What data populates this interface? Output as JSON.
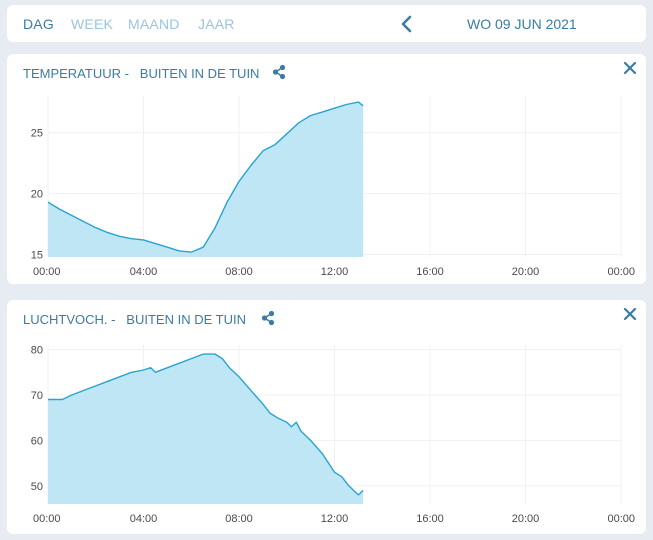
{
  "period_tabs": [
    {
      "label": "DAG",
      "active": true
    },
    {
      "label": "WEEK",
      "active": false
    },
    {
      "label": "MAAND",
      "active": false
    },
    {
      "label": "JAAR",
      "active": false
    }
  ],
  "date": "WO 09 JUN 2021",
  "icons": {
    "prev": "chevron-left-icon",
    "share": "share-icon",
    "close": "close-icon"
  },
  "colors": {
    "accent": "#3a7ca4",
    "series_line": "#2aa3cf",
    "series_fill": "#bfe6f5"
  },
  "panels": [
    {
      "metric": "TEMPERATUUR -",
      "location": "BUITEN IN DE TUIN"
    },
    {
      "metric": "LUCHTVOCH. -",
      "location": "BUITEN IN DE TUIN"
    }
  ],
  "chart_data": [
    {
      "type": "area",
      "title": "TEMPERATUUR -   BUITEN IN DE TUIN",
      "x_ticks": [
        "00:00",
        "04:00",
        "08:00",
        "12:00",
        "16:00",
        "20:00",
        "00:00"
      ],
      "xlim": [
        0,
        24
      ],
      "y_ticks": [
        15,
        20,
        25
      ],
      "ylim": [
        14.8,
        28
      ],
      "grid": true,
      "x": [
        0,
        0.5,
        1,
        1.5,
        2,
        2.5,
        3,
        3.5,
        4,
        4.5,
        5,
        5.5,
        6,
        6.5,
        7,
        7.5,
        8,
        8.5,
        9,
        9.5,
        10,
        10.5,
        11,
        11.5,
        12,
        12.5,
        13,
        13.2
      ],
      "values": [
        19.3,
        18.7,
        18.2,
        17.7,
        17.2,
        16.8,
        16.5,
        16.3,
        16.2,
        15.9,
        15.6,
        15.3,
        15.2,
        15.6,
        17.2,
        19.3,
        21.0,
        22.3,
        23.5,
        24.0,
        24.9,
        25.8,
        26.4,
        26.7,
        27.0,
        27.3,
        27.5,
        27.2
      ]
    },
    {
      "type": "area",
      "title": "LUCHTVOCH. -   BUITEN IN DE TUIN",
      "x_ticks": [
        "00:00",
        "04:00",
        "08:00",
        "12:00",
        "16:00",
        "20:00",
        "00:00"
      ],
      "xlim": [
        0,
        24
      ],
      "y_ticks": [
        50,
        60,
        70,
        80
      ],
      "ylim": [
        46,
        81
      ],
      "grid": true,
      "x": [
        0,
        0.6,
        1,
        1.5,
        2,
        2.5,
        3,
        3.5,
        4,
        4.3,
        4.5,
        5,
        5.5,
        6,
        6.5,
        7,
        7.3,
        7.6,
        8,
        8.5,
        9,
        9.3,
        9.6,
        10,
        10.2,
        10.4,
        10.6,
        11,
        11.5,
        12,
        12.3,
        12.6,
        12.8,
        13,
        13.1,
        13.2
      ],
      "values": [
        69,
        69,
        70,
        71,
        72,
        73,
        74,
        75,
        75.5,
        76,
        75,
        76,
        77,
        78,
        79,
        79,
        78,
        76,
        74,
        71,
        68,
        66,
        65,
        64,
        63,
        64,
        62,
        60,
        57,
        53,
        52,
        50,
        49,
        48,
        48.5,
        49
      ]
    }
  ]
}
